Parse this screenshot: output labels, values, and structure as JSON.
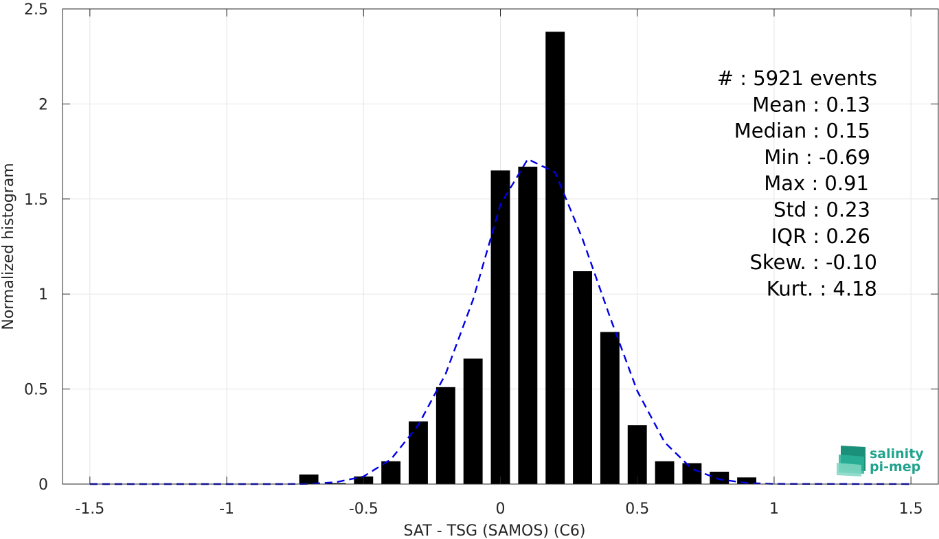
{
  "chart_data": {
    "type": "bar",
    "xlabel": "SAT - TSG (SAMOS) (C6)",
    "ylabel": "Normalized histogram",
    "xlim": [
      -1.6,
      1.6
    ],
    "ylim": [
      0,
      2.5
    ],
    "x_ticks": [
      -1.5,
      -1,
      -0.5,
      0,
      0.5,
      1,
      1.5
    ],
    "x_tick_labels": [
      "-1.5",
      "-1",
      "-0.5",
      "0",
      "0.5",
      "1",
      "1.5"
    ],
    "y_ticks": [
      0,
      0.5,
      1,
      1.5,
      2,
      2.5
    ],
    "y_tick_labels": [
      "0",
      "0.5",
      "1",
      "1.5",
      "2",
      "2.5"
    ],
    "grid": true,
    "bar_width": 0.07,
    "bars": {
      "x": [
        -0.7,
        -0.6,
        -0.5,
        -0.4,
        -0.3,
        -0.2,
        -0.1,
        0.0,
        0.1,
        0.2,
        0.3,
        0.4,
        0.5,
        0.6,
        0.7,
        0.8,
        0.9
      ],
      "values": [
        0.05,
        0.005,
        0.04,
        0.12,
        0.33,
        0.51,
        0.66,
        1.65,
        1.67,
        2.38,
        1.12,
        0.8,
        0.31,
        0.12,
        0.11,
        0.065,
        0.035
      ],
      "color": "#000000"
    },
    "fit_curve": {
      "style": "dashed",
      "color": "#0000e6",
      "x": [
        -1.5,
        -1.0,
        -0.8,
        -0.7,
        -0.6,
        -0.5,
        -0.4,
        -0.3,
        -0.2,
        -0.1,
        0.0,
        0.1,
        0.2,
        0.3,
        0.4,
        0.5,
        0.6,
        0.7,
        0.8,
        0.9,
        1.0,
        1.5
      ],
      "y": [
        0.0,
        0.0,
        0.0,
        0.001,
        0.01,
        0.04,
        0.13,
        0.31,
        0.58,
        0.97,
        1.47,
        1.71,
        1.64,
        1.29,
        0.88,
        0.49,
        0.22,
        0.08,
        0.025,
        0.006,
        0.001,
        0.0
      ]
    },
    "stats": [
      "#  : 5921 events",
      "Mean : 0.13",
      "Median : 0.15",
      "Min : -0.69",
      "Max : 0.91",
      "Std : 0.23",
      "IQR : 0.26",
      "Skew. : -0.10",
      "Kurt. : 4.18"
    ]
  },
  "logo": {
    "line1": "salinity",
    "line2": "pi-mep",
    "color": "#1fa38c"
  }
}
